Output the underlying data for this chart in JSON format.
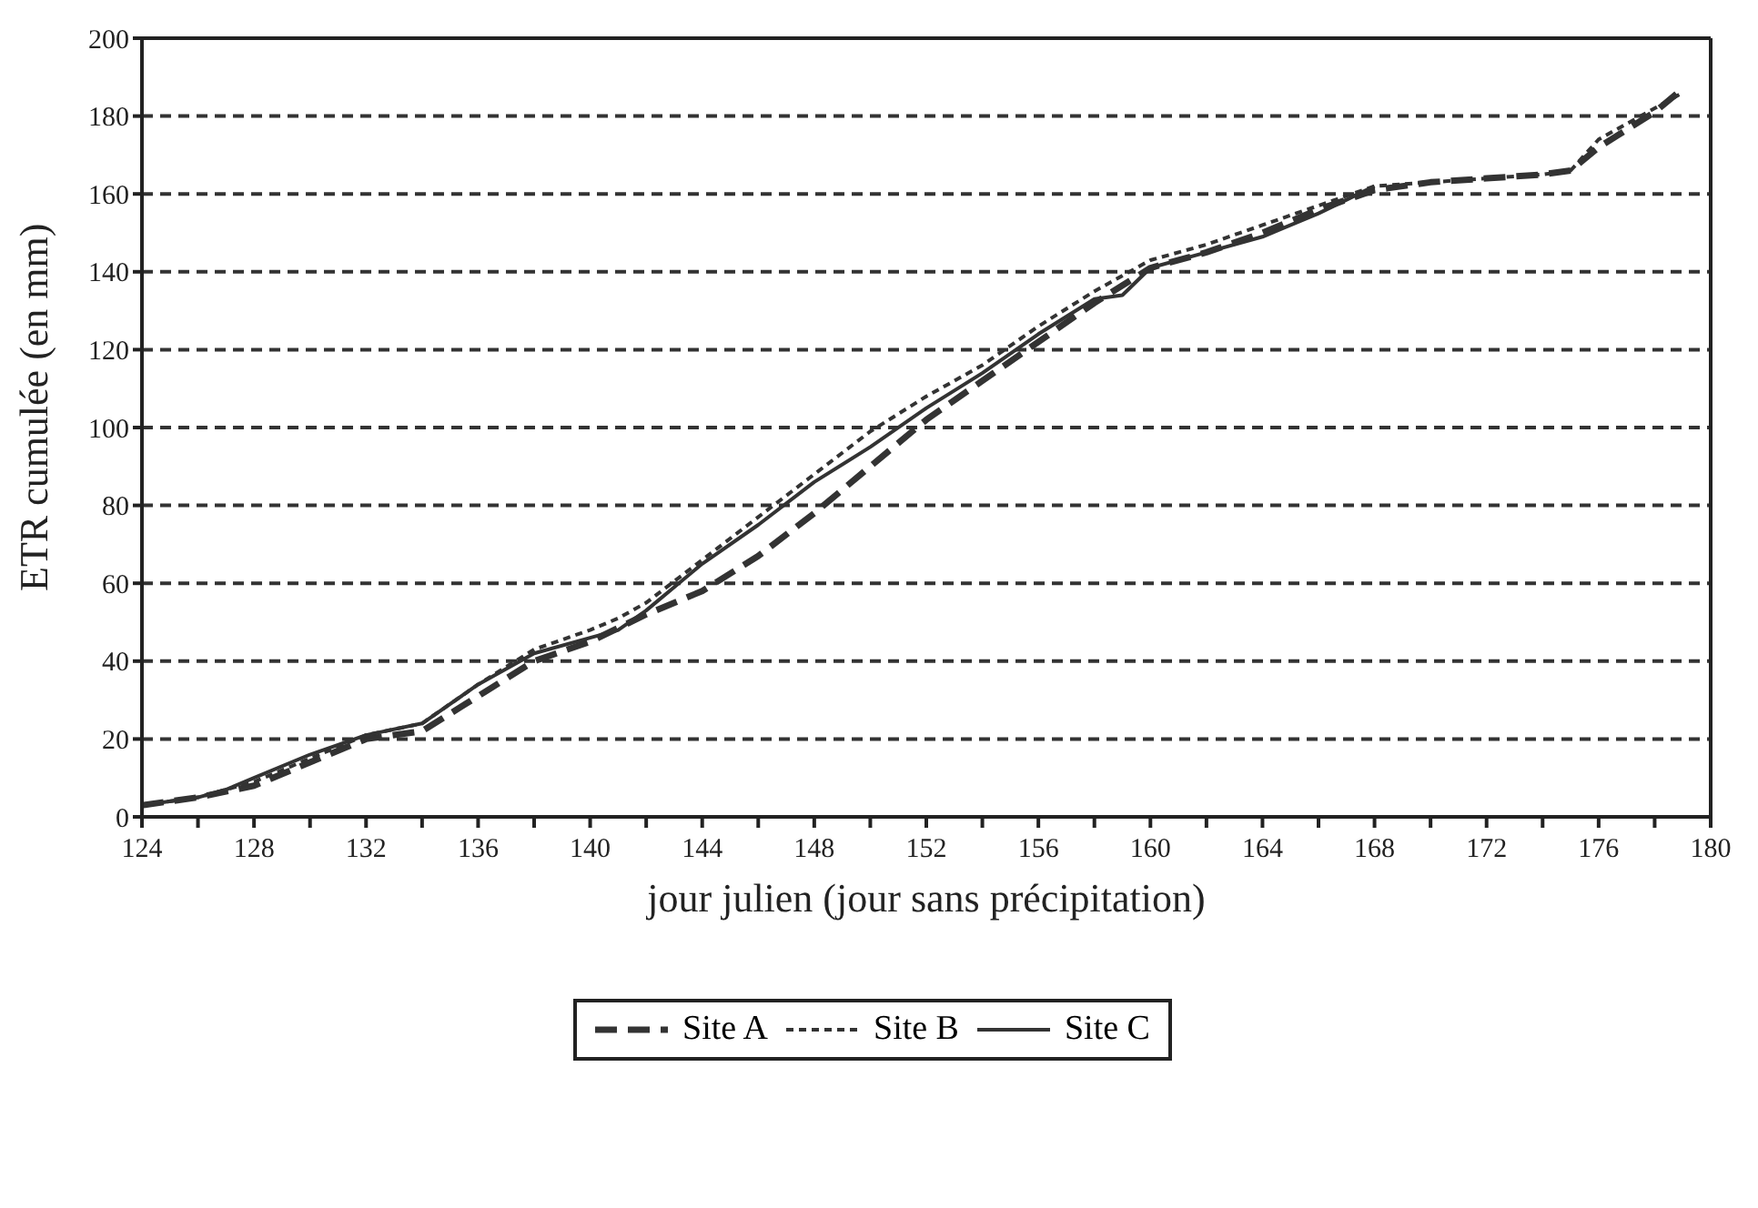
{
  "chart_data": {
    "type": "line",
    "xlabel": "jour julien (jour sans précipitation)",
    "ylabel": "ETR cumulée (en mm)",
    "xlim": [
      124,
      180
    ],
    "ylim": [
      0,
      200
    ],
    "xticks": [
      124,
      {
        "value": 126,
        "label": null
      },
      128,
      {
        "value": 130,
        "label": null
      },
      132,
      {
        "value": 134,
        "label": null
      },
      136,
      {
        "value": 138,
        "label": null
      },
      140,
      {
        "value": 142,
        "label": null
      },
      144,
      {
        "value": 146,
        "label": null
      },
      148,
      {
        "value": 150,
        "label": null
      },
      152,
      {
        "value": 154,
        "label": null
      },
      156,
      {
        "value": 158,
        "label": null
      },
      160,
      {
        "value": 162,
        "label": null
      },
      164,
      {
        "value": 166,
        "label": null
      },
      168,
      {
        "value": 170,
        "label": null
      },
      172,
      {
        "value": 174,
        "label": null
      },
      176,
      {
        "value": 178,
        "label": null
      },
      180
    ],
    "yticks": [
      0,
      20,
      40,
      60,
      80,
      100,
      120,
      140,
      160,
      180,
      200
    ],
    "grid": "y",
    "legend": "bottom",
    "marker": "none",
    "series": [
      {
        "name": "Site A",
        "color": "#333333",
        "line_style": "dashed",
        "x": [
          124,
          126,
          128,
          130,
          132,
          134,
          136,
          138,
          140,
          142,
          144,
          146,
          148,
          150,
          152,
          154,
          156,
          158,
          160,
          162,
          164,
          166,
          168,
          170,
          172,
          174,
          175,
          176,
          178,
          179
        ],
        "values": [
          3,
          5,
          8,
          14,
          20,
          22,
          31,
          40,
          45,
          52,
          58,
          67,
          78,
          90,
          102,
          112,
          122,
          132,
          141,
          145,
          150,
          156,
          161,
          163,
          164,
          165,
          166,
          172,
          181,
          187
        ]
      },
      {
        "name": "Site B",
        "color": "#333333",
        "line_style": "dotted",
        "x": [
          124,
          126,
          128,
          130,
          132,
          134,
          136,
          138,
          140,
          141,
          142,
          144,
          146,
          148,
          150,
          152,
          154,
          156,
          158,
          160,
          162,
          164,
          166,
          168,
          170,
          172,
          174,
          175,
          176,
          178,
          179
        ],
        "values": [
          3,
          5,
          9,
          15,
          21,
          24,
          34,
          43,
          48,
          51,
          55,
          66,
          77,
          88,
          99,
          108,
          116,
          126,
          135,
          143,
          147,
          152,
          157,
          162,
          163,
          164,
          165,
          166,
          174,
          182,
          186
        ]
      },
      {
        "name": "Site C",
        "color": "#333333",
        "line_style": "solid",
        "x": [
          124,
          126,
          127,
          128,
          130,
          132,
          134,
          136,
          138,
          140,
          141,
          142,
          144,
          146,
          148,
          150,
          152,
          154,
          156,
          158,
          159,
          160,
          162,
          164,
          166,
          168
        ],
        "values": [
          3,
          5,
          7,
          10,
          16,
          21,
          24,
          34,
          42,
          46,
          48,
          53,
          65,
          75,
          86,
          95,
          105,
          114,
          124,
          133,
          134,
          141,
          145,
          149,
          155,
          162
        ]
      }
    ]
  }
}
